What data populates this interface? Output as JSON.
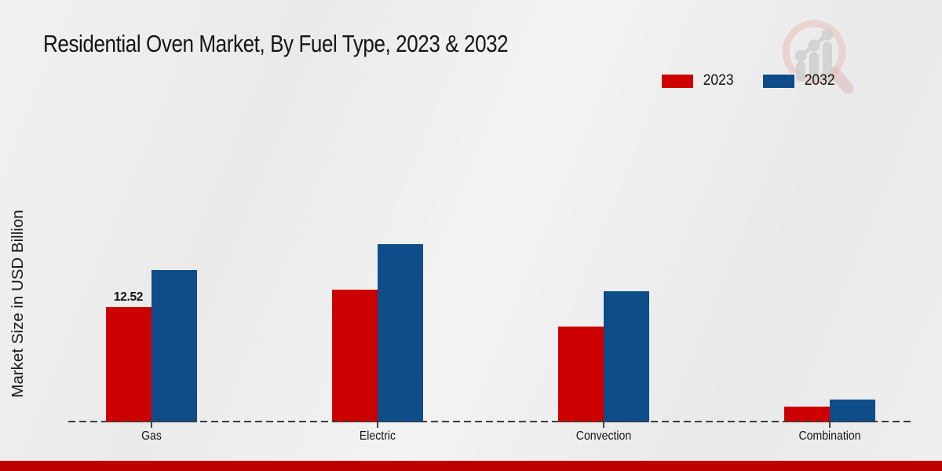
{
  "watermark": {
    "icon": "magnifier-bar-chart-logo"
  },
  "footer": {
    "bar_color": "#c00000"
  },
  "chart_data": {
    "type": "bar",
    "title": "Residential Oven Market, By Fuel Type, 2023 & 2032",
    "ylabel": "Market Size in USD Billion",
    "xlabel": "",
    "categories": [
      "Gas",
      "Electric",
      "Convection",
      "Combination"
    ],
    "series": [
      {
        "name": "2023",
        "color": "#cc0000",
        "values": [
          12.52,
          14.4,
          10.4,
          1.7
        ]
      },
      {
        "name": "2032",
        "color": "#0e4d89",
        "values": [
          16.5,
          19.3,
          14.2,
          2.5
        ]
      }
    ],
    "value_labels": [
      {
        "series_index": 0,
        "category_index": 0,
        "text": "12.52"
      }
    ],
    "ylim": [
      0,
      22
    ],
    "grid": false,
    "baseline_style": "dashed",
    "legend_position": "top-right",
    "axis_numbers_visible": false
  }
}
